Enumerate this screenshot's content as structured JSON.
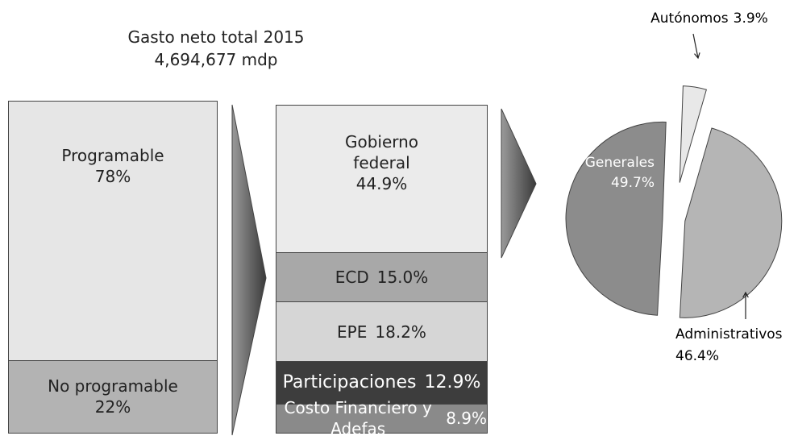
{
  "chart_data": [
    {
      "type": "stacked_bar",
      "title": "Gasto neto total 2015",
      "subtitle": "4,694,677 mdp",
      "series": [
        {
          "name": "Programable",
          "values": [
            78
          ],
          "value_labels": [
            "78%"
          ],
          "color": "#e6e6e6"
        },
        {
          "name": "No programable",
          "values": [
            22
          ],
          "value_labels": [
            "22%"
          ],
          "color": "#b3b3b3"
        }
      ]
    },
    {
      "type": "stacked_bar",
      "series": [
        {
          "name": "Gobierno federal",
          "values": [
            44.9
          ],
          "value_labels": [
            "44.9%"
          ],
          "color": "#ebebeb"
        },
        {
          "name": "ECD",
          "values": [
            15.0
          ],
          "value_labels": [
            "15.0%"
          ],
          "color": "#a8a8a8"
        },
        {
          "name": "EPE",
          "values": [
            18.2
          ],
          "value_labels": [
            "18.2%"
          ],
          "color": "#d6d6d6"
        },
        {
          "name": "Participaciones",
          "values": [
            12.9
          ],
          "value_labels": [
            "12.9%"
          ],
          "color": "#3d3d3d"
        },
        {
          "name": "Costo Financiero y Adefas",
          "values": [
            8.9
          ],
          "value_labels": [
            "8.9%"
          ],
          "color": "#8a8a8a"
        }
      ]
    },
    {
      "type": "pie",
      "categories": [
        "Autónomos",
        "Administrativos",
        "Generales"
      ],
      "values": [
        3.9,
        46.4,
        49.7
      ],
      "value_labels": [
        "3.9%",
        "46.4%",
        "49.7%"
      ],
      "colors": [
        "#e8e8e8",
        "#b5b5b5",
        "#8c8c8c"
      ]
    }
  ]
}
